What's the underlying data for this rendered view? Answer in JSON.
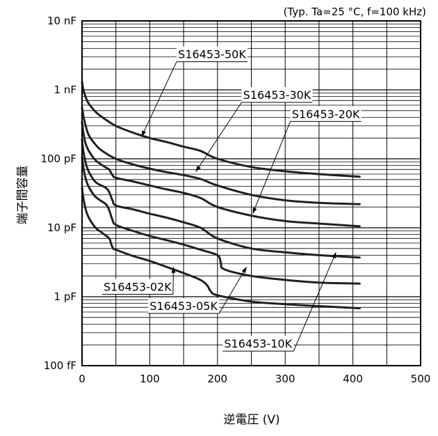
{
  "chart_data": {
    "type": "line",
    "condition_note": "(Typ. Ta=25 °C, f=100 kHz)",
    "xlabel": "逆電圧 (V)",
    "ylabel": "端子間容量",
    "xlim": [
      0,
      500
    ],
    "ylim": [
      1e-13,
      1e-08
    ],
    "yscale": "log",
    "grid": true,
    "x_ticks": [
      {
        "value": 0,
        "label": "0"
      },
      {
        "value": 100,
        "label": "100"
      },
      {
        "value": 200,
        "label": "200"
      },
      {
        "value": 300,
        "label": "300"
      },
      {
        "value": 400,
        "label": "400"
      },
      {
        "value": 500,
        "label": "500"
      }
    ],
    "y_ticks": [
      {
        "value": 1e-13,
        "label": "100 fF"
      },
      {
        "value": 1e-12,
        "label": "1 pF"
      },
      {
        "value": 1e-11,
        "label": "10 pF"
      },
      {
        "value": 1e-10,
        "label": "100 pF"
      },
      {
        "value": 1e-09,
        "label": "1 nF"
      },
      {
        "value": 1e-08,
        "label": "10 nF"
      }
    ],
    "series": [
      {
        "name": "S16453-50K",
        "x": [
          0,
          2,
          5,
          10,
          20,
          30,
          50,
          75,
          100,
          125,
          150,
          175,
          200,
          250,
          300,
          350,
          410
        ],
        "y": [
          1.3e-09,
          1e-09,
          8e-10,
          6.3e-10,
          4.8e-10,
          4e-10,
          3e-10,
          2.4e-10,
          2e-10,
          1.75e-10,
          1.5e-10,
          1.3e-10,
          1e-10,
          7.6e-11,
          6.6e-11,
          6e-11,
          5.5e-11
        ]
      },
      {
        "name": "S16453-30K",
        "x": [
          0,
          2,
          5,
          10,
          20,
          30,
          50,
          75,
          100,
          125,
          150,
          175,
          200,
          250,
          300,
          350,
          410
        ],
        "y": [
          5.5e-10,
          4.2e-10,
          3.1e-10,
          2.2e-10,
          1.6e-10,
          1.3e-10,
          1e-10,
          8.3e-11,
          7.2e-11,
          6.4e-11,
          5.8e-11,
          5.1e-11,
          4.1e-11,
          3e-11,
          2.5e-11,
          2.3e-11,
          2.2e-11
        ]
      },
      {
        "name": "S16453-20K",
        "x": [
          0,
          2,
          5,
          10,
          20,
          35,
          40,
          45,
          50,
          75,
          100,
          125,
          150,
          175,
          200,
          250,
          300,
          350,
          410
        ],
        "y": [
          3.4e-10,
          2.4e-10,
          1.7e-10,
          1.3e-10,
          9.5e-11,
          7.5e-11,
          7e-11,
          5.8e-11,
          5.3e-11,
          4.7e-11,
          4.1e-11,
          3.6e-11,
          3.2e-11,
          2.7e-11,
          2e-11,
          1.5e-11,
          1.25e-11,
          1.15e-11,
          1.05e-11
        ]
      },
      {
        "name": "S16453-10K",
        "x": [
          0,
          2,
          5,
          10,
          20,
          35,
          40,
          45,
          50,
          75,
          100,
          125,
          150,
          175,
          200,
          250,
          300,
          350,
          410
        ],
        "y": [
          1.9e-10,
          1.3e-10,
          9e-11,
          6.5e-11,
          4.6e-11,
          3.8e-11,
          3.3e-11,
          2.5e-11,
          2.1e-11,
          1.85e-11,
          1.6e-11,
          1.4e-11,
          1.2e-11,
          1e-11,
          7e-12,
          5e-12,
          4.4e-12,
          4e-12,
          3.7e-12
        ]
      },
      {
        "name": "S16453-05K",
        "x": [
          0,
          2,
          5,
          10,
          20,
          35,
          40,
          45,
          50,
          75,
          100,
          125,
          150,
          175,
          200,
          205,
          210,
          250,
          300,
          350,
          410
        ],
        "y": [
          1.05e-10,
          7.5e-11,
          5.3e-11,
          3.9e-11,
          2.8e-11,
          2.2e-11,
          1.8e-11,
          1.3e-11,
          1.1e-11,
          9e-12,
          7.6e-12,
          6.6e-12,
          5.7e-12,
          4.8e-12,
          4e-12,
          3.1e-12,
          2.5e-12,
          2e-12,
          1.75e-12,
          1.6e-12,
          1.55e-12
        ]
      },
      {
        "name": "S16453-02K",
        "x": [
          0,
          2,
          5,
          10,
          20,
          30,
          40,
          43,
          46,
          50,
          75,
          100,
          125,
          150,
          175,
          185,
          190,
          200,
          250,
          300,
          350,
          410
        ],
        "y": [
          3.8e-11,
          2.7e-11,
          1.9e-11,
          1.4e-11,
          1e-11,
          8.4e-12,
          7e-12,
          5.8e-12,
          5e-12,
          4.8e-12,
          3.9e-12,
          3.3e-12,
          2.7e-12,
          2.2e-12,
          1.75e-12,
          1.45e-12,
          1.2e-12,
          1.05e-12,
          8.5e-13,
          7.8e-13,
          7.3e-13,
          6.8e-13
        ]
      }
    ]
  }
}
